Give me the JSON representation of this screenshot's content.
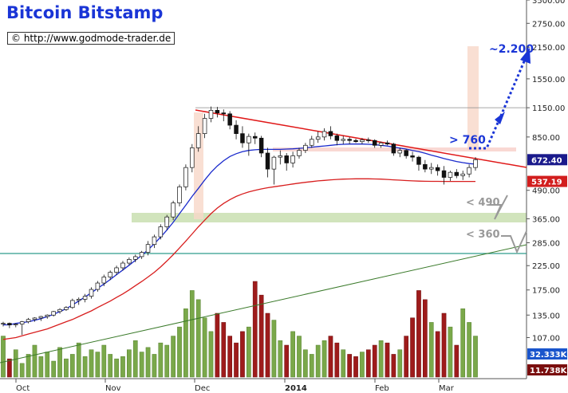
{
  "header": {
    "title": "Bitcoin Bitstamp",
    "credit": "© http://www.godmode-trader.de"
  },
  "chart_data": {
    "type": "candlestick",
    "title": "Bitcoin Bitstamp",
    "xlabel": "",
    "ylabel": "",
    "scale": "log",
    "ylim": [
      70,
      3500
    ],
    "grid": false,
    "x_tick_labels": [
      "Oct",
      "Nov",
      "Dec",
      "2014",
      "Feb",
      "Mar"
    ],
    "y_tick_labels": [
      3500,
      2750,
      2150,
      1550,
      1150,
      850,
      490,
      365,
      285,
      225,
      175,
      135,
      107
    ],
    "price_badges": [
      {
        "label": "672.40",
        "value": 672.4,
        "color": "#1a1a8c"
      },
      {
        "label": "537.19",
        "value": 537.19,
        "color": "#d21e1e"
      }
    ],
    "volume_badges": [
      {
        "label": "32.333K",
        "color": "#1a55cc"
      },
      {
        "label": "11.738K",
        "color": "#7a0e0e"
      }
    ],
    "series": [
      {
        "name": "Price (OHLC)",
        "values": [
          [
            123,
            126,
            120,
            124
          ],
          [
            124,
            125,
            118,
            122
          ],
          [
            122,
            124,
            119,
            123
          ],
          [
            123,
            127,
            110,
            126
          ],
          [
            126,
            131,
            124,
            129
          ],
          [
            129,
            132,
            126,
            131
          ],
          [
            131,
            134,
            127,
            133
          ],
          [
            133,
            136,
            130,
            135
          ],
          [
            135,
            141,
            133,
            140
          ],
          [
            140,
            145,
            137,
            143
          ],
          [
            143,
            148,
            141,
            146
          ],
          [
            146,
            160,
            144,
            157
          ],
          [
            157,
            162,
            150,
            159
          ],
          [
            159,
            168,
            154,
            164
          ],
          [
            164,
            180,
            160,
            176
          ],
          [
            176,
            192,
            172,
            188
          ],
          [
            188,
            205,
            182,
            200
          ],
          [
            200,
            214,
            194,
            210
          ],
          [
            210,
            225,
            204,
            220
          ],
          [
            220,
            236,
            214,
            231
          ],
          [
            231,
            245,
            226,
            240
          ],
          [
            240,
            252,
            233,
            247
          ],
          [
            247,
            262,
            241,
            258
          ],
          [
            258,
            290,
            250,
            280
          ],
          [
            280,
            310,
            270,
            303
          ],
          [
            303,
            345,
            295,
            336
          ],
          [
            336,
            380,
            325,
            372
          ],
          [
            372,
            440,
            360,
            430
          ],
          [
            430,
            520,
            415,
            508
          ],
          [
            508,
            640,
            490,
            620
          ],
          [
            620,
            790,
            590,
            760
          ],
          [
            760,
            950,
            730,
            880
          ],
          [
            880,
            1080,
            840,
            1030
          ],
          [
            1030,
            1165,
            990,
            1120
          ],
          [
            1120,
            1160,
            1040,
            1090
          ],
          [
            1090,
            1130,
            1000,
            1080
          ],
          [
            1080,
            1110,
            920,
            960
          ],
          [
            960,
            1010,
            830,
            880
          ],
          [
            880,
            950,
            760,
            800
          ],
          [
            800,
            880,
            700,
            855
          ],
          [
            855,
            890,
            790,
            840
          ],
          [
            840,
            860,
            690,
            720
          ],
          [
            720,
            760,
            560,
            610
          ],
          [
            610,
            700,
            520,
            690
          ],
          [
            690,
            740,
            640,
            700
          ],
          [
            700,
            720,
            600,
            650
          ],
          [
            650,
            730,
            620,
            700
          ],
          [
            700,
            760,
            680,
            740
          ],
          [
            740,
            800,
            720,
            780
          ],
          [
            780,
            860,
            760,
            830
          ],
          [
            830,
            900,
            800,
            850
          ],
          [
            850,
            930,
            820,
            900
          ],
          [
            900,
            950,
            830,
            860
          ],
          [
            860,
            880,
            780,
            820
          ],
          [
            820,
            860,
            790,
            830
          ],
          [
            830,
            850,
            790,
            820
          ],
          [
            820,
            835,
            800,
            810
          ],
          [
            810,
            840,
            790,
            825
          ],
          [
            825,
            845,
            800,
            820
          ],
          [
            820,
            830,
            760,
            780
          ],
          [
            780,
            810,
            760,
            800
          ],
          [
            800,
            820,
            780,
            790
          ],
          [
            790,
            800,
            700,
            720
          ],
          [
            720,
            760,
            690,
            740
          ],
          [
            740,
            750,
            680,
            700
          ],
          [
            700,
            730,
            660,
            690
          ],
          [
            690,
            700,
            600,
            640
          ],
          [
            640,
            670,
            590,
            610
          ],
          [
            610,
            650,
            580,
            620
          ],
          [
            620,
            640,
            570,
            600
          ],
          [
            600,
            630,
            520,
            560
          ],
          [
            560,
            600,
            540,
            590
          ],
          [
            590,
            610,
            555,
            570
          ],
          [
            570,
            600,
            545,
            580
          ],
          [
            580,
            640,
            560,
            620
          ],
          [
            620,
            690,
            600,
            672.4
          ]
        ]
      },
      {
        "name": "MA fast",
        "values": [
          122,
          122,
          124,
          125,
          126,
          128,
          130,
          133,
          136,
          140,
          144,
          150,
          156,
          163,
          170,
          178,
          186,
          195,
          205,
          215,
          226,
          238,
          250,
          265,
          282,
          302,
          325,
          352,
          385,
          420,
          460,
          500,
          545,
          590,
          630,
          665,
          695,
          715,
          730,
          740,
          745,
          748,
          748,
          748,
          748,
          750,
          752,
          756,
          760,
          765,
          770,
          775,
          780,
          785,
          788,
          790,
          790,
          790,
          788,
          785,
          780,
          774,
          766,
          758,
          750,
          740,
          730,
          718,
          705,
          693,
          680,
          670,
          660,
          652,
          646,
          642
        ]
      },
      {
        "name": "MA slow",
        "values": [
          105,
          106,
          107,
          109,
          111,
          113,
          115,
          117,
          120,
          123,
          126,
          129,
          133,
          137,
          141,
          146,
          151,
          156,
          162,
          168,
          175,
          183,
          191,
          200,
          210,
          222,
          236,
          252,
          270,
          290,
          312,
          336,
          360,
          385,
          408,
          428,
          445,
          460,
          472,
          482,
          490,
          497,
          503,
          508,
          513,
          518,
          523,
          528,
          532,
          536,
          540,
          543,
          546,
          548,
          550,
          551,
          552,
          552,
          552,
          551,
          550,
          548,
          546,
          544,
          542,
          540,
          539,
          538,
          537.5,
          537.3,
          537.2,
          537.19,
          537.19,
          537.19,
          537.19,
          537.19
        ]
      },
      {
        "name": "Volume",
        "values": [
          18,
          8,
          12,
          6,
          10,
          14,
          9,
          11,
          7,
          13,
          8,
          10,
          15,
          9,
          12,
          11,
          14,
          10,
          8,
          9,
          12,
          16,
          11,
          13,
          10,
          15,
          14,
          18,
          22,
          30,
          38,
          34,
          26,
          20,
          28,
          24,
          18,
          15,
          20,
          22,
          42,
          36,
          28,
          25,
          16,
          14,
          20,
          18,
          12,
          10,
          14,
          16,
          18,
          15,
          12,
          10,
          9,
          11,
          12,
          14,
          16,
          15,
          10,
          12,
          18,
          26,
          38,
          34,
          24,
          20,
          28,
          22,
          14,
          30,
          24,
          18
        ]
      }
    ],
    "annotations": [
      {
        "text": "~2.200",
        "color": "#1a35d6"
      },
      {
        "text": "> 760",
        "color": "#1a35d6"
      },
      {
        "text": "< 490",
        "color": "#999999"
      },
      {
        "text": "< 360",
        "color": "#999999"
      }
    ]
  }
}
